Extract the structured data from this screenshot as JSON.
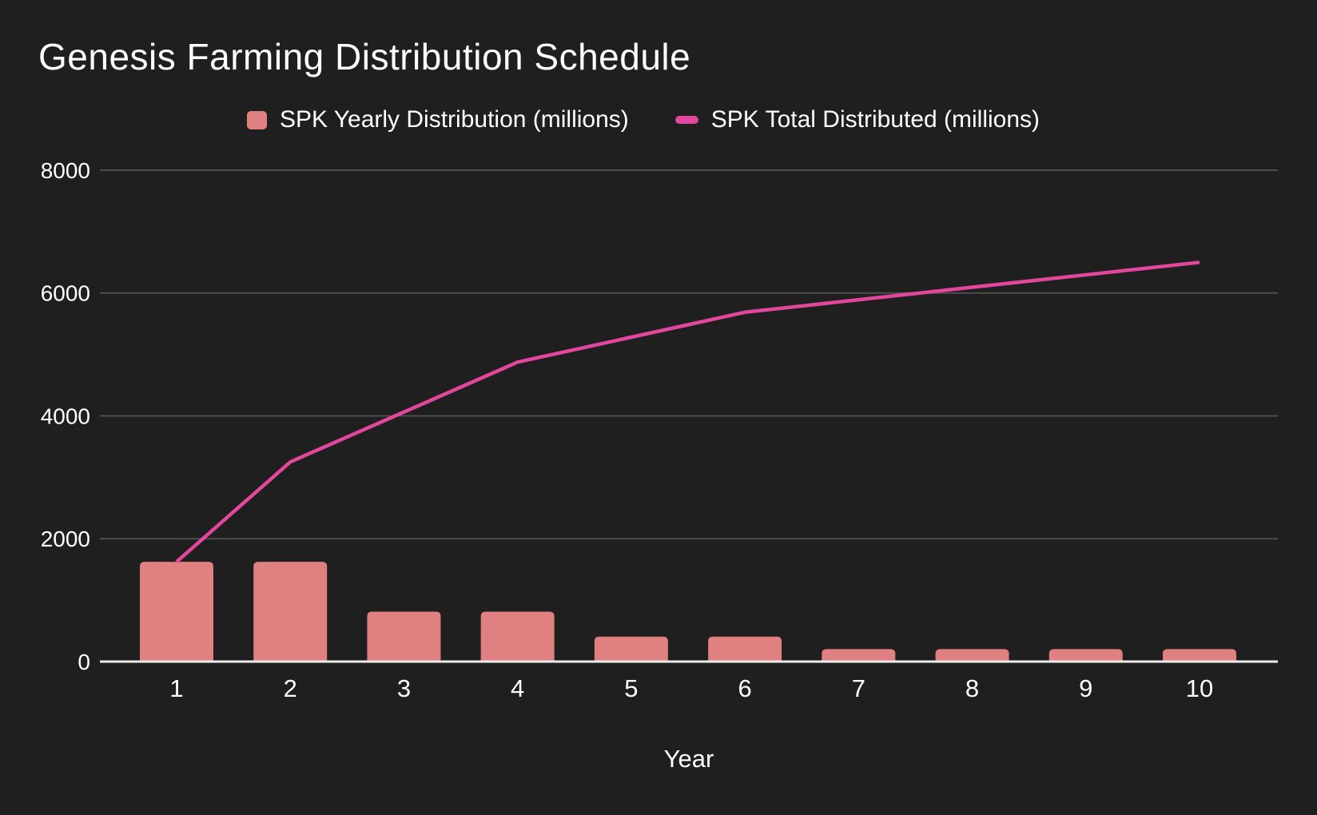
{
  "title": "Genesis Farming Distribution Schedule",
  "colors": {
    "background": "#1e1f1e",
    "bar": "#e08080",
    "line": "#e2479d",
    "gridline": "#4d4d4d",
    "axis_baseline": "#ececec",
    "text": "#ffffff"
  },
  "legend": {
    "bar_label": "SPK Yearly Distribution (millions)",
    "line_label": "SPK Total Distributed (millions)"
  },
  "chart_data": {
    "type": "bar",
    "subtype": "combo-bar-line",
    "title": "Genesis Farming Distribution Schedule",
    "categories": [
      "1",
      "2",
      "3",
      "4",
      "5",
      "6",
      "7",
      "8",
      "9",
      "10"
    ],
    "series": [
      {
        "name": "SPK Yearly Distribution (millions)",
        "type": "bar",
        "color": "#e08080",
        "values": [
          1625,
          1625,
          812.5,
          812.5,
          406.25,
          406.25,
          203.125,
          203.125,
          203.125,
          203.125
        ]
      },
      {
        "name": "SPK Total Distributed (millions)",
        "type": "line",
        "color": "#e2479d",
        "values": [
          1625,
          3250,
          4062.5,
          4875,
          5281.25,
          5687.5,
          5890.625,
          6093.75,
          6296.875,
          6500
        ]
      }
    ],
    "xlabel": "Year",
    "ylabel": "",
    "ylim": [
      0,
      8000
    ],
    "yticks": [
      0,
      2000,
      4000,
      6000,
      8000
    ],
    "grid": true,
    "legend_position": "top"
  }
}
